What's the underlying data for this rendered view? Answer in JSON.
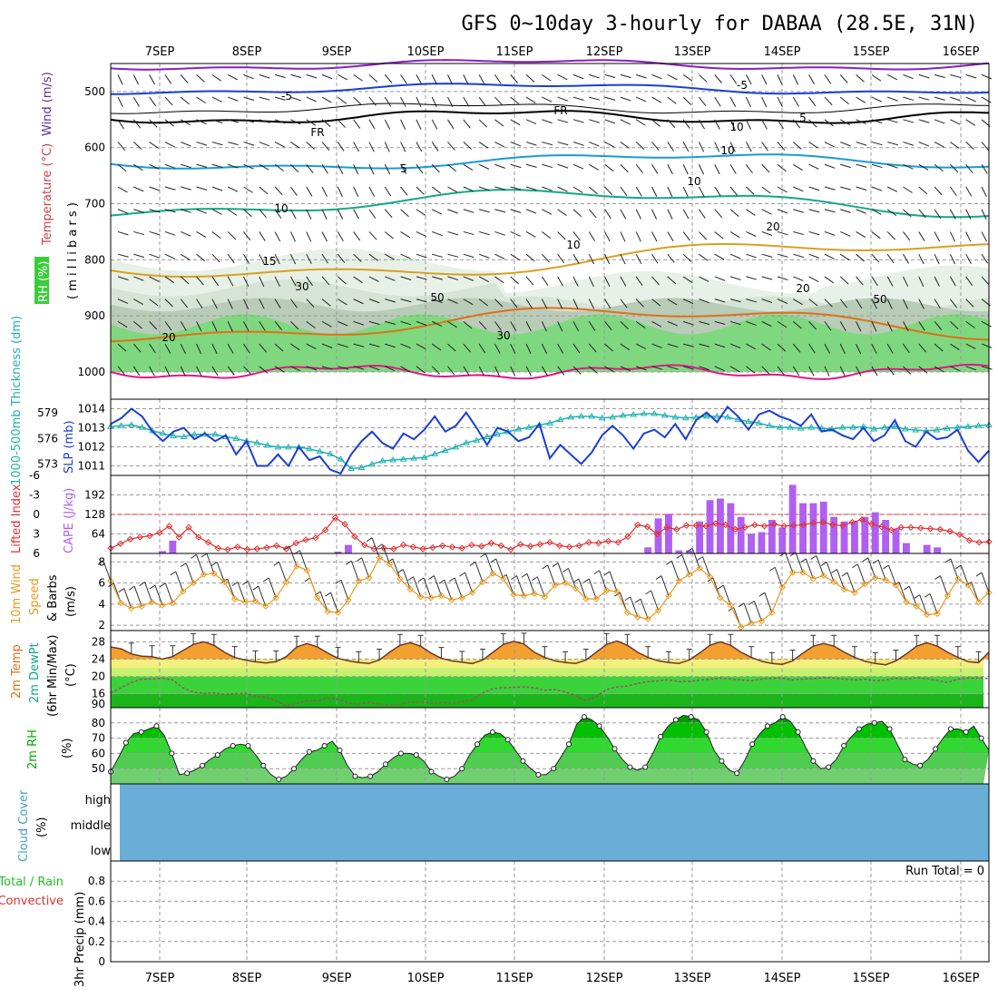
{
  "title": "GFS 0~10day 3-hourly for DABAA (28.5E, 31N)",
  "colors": {
    "purple": "#8a1fc0",
    "blue": "#1a3fd0",
    "black": "#000000",
    "lightblue": "#1a9ad6",
    "teal": "#12a888",
    "gold": "#d8a020",
    "orange": "#e07018",
    "magenta": "#e0188a",
    "cape": "#b060f0",
    "li": "#e03030",
    "wind10": "#e89a20",
    "thick": "#20b0b0",
    "slp": "#1a3fd0",
    "cloud": "#6aaed8",
    "rh_green": "#00cc00"
  },
  "date_labels": [
    "7SEP",
    "8SEP",
    "9SEP",
    "10SEP",
    "11SEP",
    "12SEP",
    "13SEP",
    "14SEP",
    "15SEP",
    "16SEP"
  ],
  "panels": {
    "upper": {
      "ylabel_temp": "Temperature (°C)",
      "ylabel_wind": "Wind (m/s)",
      "ylabel_rh": "RH (%)",
      "ylabel_p": "( m i l l i b a r s )",
      "ticks": [
        "500",
        "600",
        "700",
        "800",
        "900",
        "1000"
      ],
      "contour_labels": [
        "-5",
        "-5",
        "FR",
        "FR",
        "5",
        "5",
        "10",
        "10",
        "10",
        "15",
        "15",
        "20",
        "20",
        "20",
        "30",
        "30",
        "50",
        "50",
        "10",
        "10"
      ]
    },
    "slp": {
      "ylabel_left": "1000-500mb Thickness (dm)",
      "ylabel_right": "SLP (mb)",
      "thick_ticks": [
        "579",
        "576",
        "573"
      ],
      "slp_ticks": [
        "1014",
        "1013",
        "1012",
        "1011"
      ]
    },
    "cape": {
      "ylabel_left": "Lifted Index",
      "ylabel_right": "CAPE (J/kg)",
      "li_ticks": [
        "-6",
        "-3",
        "0",
        "3",
        "6"
      ],
      "cape_ticks": [
        "192",
        "128",
        "64"
      ]
    },
    "wind": {
      "ylabel1": "10m Wind",
      "ylabel2": "Speed",
      "ylabel3": "& Barbs",
      "ylabel_unit": "(m/s)",
      "ticks": [
        "8",
        "6",
        "4",
        "2"
      ]
    },
    "temp": {
      "ylabel1": "2m Temp",
      "ylabel2": "2m DewPt",
      "ylabel3": "(6hr Min/Max)",
      "ylabel_unit": "(°C)",
      "ticks": [
        "28",
        "24",
        "20",
        "16",
        "90"
      ]
    },
    "rh": {
      "ylabel": "2m RH",
      "ylabel_unit": "(%)",
      "ticks": [
        "80",
        "70",
        "60",
        "50"
      ]
    },
    "cloud": {
      "ylabel1": "Cloud Cover",
      "ylabel_unit": "(%)",
      "levels": [
        "high",
        "middle",
        "low"
      ]
    },
    "precip": {
      "ylabel_total": "Total / Rain",
      "ylabel_conv": "Convective",
      "ylabel_axis": "3hr Precip (mm)",
      "ticks": [
        "0.8",
        "0.6",
        "0.4",
        "0.2",
        "0"
      ],
      "run_total": "Run Total = 0"
    }
  },
  "chart_data": [
    {
      "type": "line",
      "name": "slp_thickness",
      "x_unit": "forecast hour",
      "series": [
        {
          "name": "SLP (mb)",
          "values": [
            1013.2,
            1013.5,
            1014,
            1013.6,
            1012.8,
            1012.3,
            1012.8,
            1013.0,
            1012.4,
            1012.7,
            1012.3,
            1012.6,
            1011.6,
            1012.3,
            1011.0,
            1011.0,
            1011.6,
            1011.0,
            1012.0,
            1011.3,
            1011.5,
            1010.8,
            1010.6,
            1011.6,
            1012.3,
            1012.8,
            1012.2,
            1011.9,
            1012.7,
            1012.4,
            1012.9,
            1013.6,
            1012.8,
            1013.1,
            1013.8,
            1013.0,
            1012.1,
            1013.0,
            1012.8,
            1012.3,
            1012.5,
            1013.2,
            1011.4,
            1012.1,
            1011.6,
            1011.1,
            1011.7,
            1012.6,
            1013.1,
            1012.6,
            1011.9,
            1012.7,
            1012.9,
            1012.5,
            1013.2,
            1012.4,
            1013.4,
            1013.8,
            1013.3,
            1014.1,
            1013.6,
            1012.9,
            1013.7,
            1013.9,
            1013.6,
            1013.4,
            1013.1,
            1013.7,
            1012.8,
            1012.9,
            1012.6,
            1012.4,
            1013.0,
            1012.3,
            1012.6,
            1013.4,
            1012.3,
            1012.0,
            1012.8,
            1012.4,
            1012.5,
            1012.9,
            1011.8,
            1011.2,
            1011.8
          ]
        },
        {
          "name": "1000-500mb Thickness (dm)",
          "values": [
            577.4,
            577.5,
            577.6,
            577.3,
            576.9,
            576.6,
            576.3,
            576.2,
            576.5,
            576.5,
            576.5,
            576.2,
            576.0,
            575.7,
            575.5,
            575.2,
            575.0,
            575.0,
            575.0,
            574.8,
            574.5,
            574.2,
            573.6,
            572.5,
            572.6,
            573.0,
            573.4,
            573.5,
            573.6,
            573.7,
            573.8,
            574.2,
            574.6,
            575.0,
            575.5,
            575.8,
            576.2,
            576.5,
            576.8,
            577.1,
            577.3,
            577.6,
            577.8,
            578.2,
            578.5,
            578.6,
            578.6,
            578.4,
            578.5,
            578.7,
            578.8,
            578.9,
            578.9,
            578.7,
            578.5,
            578.4,
            578.5,
            578.6,
            578.6,
            578.5,
            578.2,
            578.0,
            577.8,
            577.5,
            577.3,
            577.3,
            577.2,
            577.3,
            577.2,
            577.1,
            577.3,
            577.3,
            577.4,
            577.1,
            577.3,
            577.4,
            577.1,
            577.0,
            576.9,
            577.0,
            577.2,
            577.3,
            577.4,
            577.5,
            577.6
          ]
        }
      ],
      "ylim_slp": [
        1010.5,
        1014.5
      ],
      "ylim_thick": [
        571.7,
        580.6
      ]
    },
    {
      "type": "bar",
      "name": "cape_li",
      "series": [
        {
          "name": "CAPE (J/kg)",
          "values": [
            0,
            0,
            0,
            0,
            0,
            8,
            42,
            0,
            0,
            0,
            0,
            0,
            0,
            0,
            0,
            0,
            0,
            0,
            0,
            0,
            0,
            0,
            6,
            28,
            0,
            0,
            0,
            0,
            0,
            0,
            0,
            0,
            0,
            0,
            0,
            0,
            0,
            0,
            0,
            0,
            0,
            0,
            0,
            0,
            0,
            0,
            0,
            0,
            0,
            0,
            0,
            0,
            20,
            115,
            130,
            10,
            10,
            105,
            175,
            180,
            165,
            120,
            65,
            70,
            110,
            85,
            225,
            165,
            165,
            170,
            120,
            105,
            105,
            120,
            135,
            110,
            80,
            34,
            0,
            28,
            20,
            0,
            0,
            0,
            0,
            0
          ]
        },
        {
          "name": "Lifted Index",
          "values": [
            5.2,
            4.5,
            3.8,
            3.5,
            3.3,
            2.8,
            1.8,
            3.5,
            2.0,
            3.5,
            4.3,
            5.2,
            5.4,
            5.0,
            5.4,
            5.3,
            5.1,
            4.8,
            5.3,
            4.4,
            3.9,
            3.6,
            2.4,
            0.5,
            1.5,
            3.4,
            4.7,
            5.3,
            5.2,
            5.3,
            4.7,
            5.0,
            5.3,
            5.1,
            4.8,
            5.0,
            5.2,
            4.7,
            4.9,
            4.4,
            4.8,
            5.4,
            4.6,
            4.9,
            4.6,
            4.3,
            4.8,
            5.0,
            4.8,
            4.3,
            4.4,
            4.1,
            4.3,
            3.4,
            1.6,
            1.9,
            3.0,
            2.0,
            2.3,
            1.7,
            1.7,
            1.8,
            1.4,
            1.6,
            2.3,
            2.0,
            1.6,
            1.8,
            1.5,
            1.8,
            1.7,
            1.6,
            1.3,
            1.2,
            1.6,
            1.7,
            1.2,
            0.8,
            1.5,
            1.9,
            2.4,
            2.0,
            2.0,
            2.1,
            2.2,
            2.3,
            2.6,
            3.1,
            4.0,
            4.3,
            4.2
          ]
        }
      ],
      "ylim_cape": [
        0,
        256
      ],
      "ylim_li": [
        6,
        -6
      ]
    },
    {
      "type": "line",
      "name": "wind10m",
      "series": [
        {
          "name": "10m Wind Speed (m/s)",
          "values": [
            6.2,
            4.1,
            3.6,
            3.8,
            4.2,
            3.9,
            4.1,
            5.2,
            6.0,
            6.8,
            6.9,
            6.1,
            4.5,
            4.2,
            4.3,
            3.8,
            4.6,
            6.1,
            7.6,
            7.2,
            4.6,
            3.3,
            3.2,
            4.4,
            6.2,
            6.5,
            8.4,
            7.8,
            6.4,
            5.4,
            4.7,
            4.6,
            4.8,
            4.4,
            4.6,
            5.1,
            6.1,
            6.9,
            6.4,
            4.9,
            4.8,
            5.0,
            4.7,
            5.8,
            6.0,
            5.5,
            4.5,
            4.5,
            5.3,
            5.2,
            3.2,
            2.8,
            2.6,
            3.4,
            4.8,
            6.2,
            6.8,
            7.4,
            6.6,
            4.6,
            3.9,
            1.8,
            2.2,
            2.4,
            3.2,
            5.6,
            7.0,
            7.0,
            6.4,
            6.7,
            6.1,
            5.4,
            5.1,
            5.9,
            6.5,
            6.3,
            5.8,
            4.2,
            3.8,
            3.0,
            3.1,
            4.8,
            6.4,
            5.8,
            4.2,
            5.1
          ]
        }
      ],
      "ylim": [
        1.5,
        8.8
      ]
    },
    {
      "type": "area",
      "name": "temp2m",
      "series": [
        {
          "name": "2m Temp",
          "values": [
            26.8,
            26.4,
            25.2,
            24.7,
            24.6,
            24.0,
            24.6,
            26.0,
            27.4,
            28.0,
            27.2,
            25.6,
            24.4,
            23.8,
            23.4,
            23.1,
            23.4,
            24.6,
            26.8,
            27.6,
            26.8,
            25.4,
            24.2,
            23.6,
            23.2,
            23.0,
            23.8,
            25.6,
            27.2,
            27.8,
            27.0,
            25.4,
            24.2,
            23.6,
            23.3,
            23.0,
            23.8,
            25.6,
            27.4,
            28.1,
            27.5,
            25.6,
            24.4,
            23.6,
            23.2,
            23.0,
            23.8,
            25.6,
            27.4,
            28.2,
            27.2,
            25.6,
            24.4,
            23.6,
            23.2,
            23.0,
            23.8,
            25.4,
            27.2,
            28.0,
            27.2,
            25.6,
            24.4,
            23.5,
            23.0,
            22.8,
            23.6,
            25.4,
            27.0,
            27.6,
            27.0,
            25.6,
            24.4,
            23.5,
            23.0,
            22.7,
            23.6,
            25.2,
            27.0,
            27.8,
            27.0,
            25.6,
            24.4,
            23.4,
            23.2,
            25.6
          ]
        },
        {
          "name": "2m DewPt",
          "values": [
            16.2,
            17.4,
            18.6,
            19.4,
            19.4,
            19.6,
            19.2,
            17.4,
            16.4,
            16.1,
            16.2,
            15.9,
            16.0,
            16.1,
            15.5,
            15.2,
            14.4,
            13.2,
            13.8,
            14.4,
            14.4,
            15.0,
            14.8,
            13.8,
            13.6,
            14.0,
            13.6,
            13.4,
            13.6,
            14.1,
            14.2,
            13.8,
            14.0,
            13.8,
            14.2,
            14.6,
            16.2,
            17.2,
            17.4,
            17.5,
            17.6,
            17.4,
            16.8,
            17.0,
            16.4,
            15.6,
            14.4,
            15.4,
            17.0,
            17.6,
            17.8,
            18.4,
            18.8,
            19.0,
            19.2,
            18.8,
            18.9,
            19.1,
            19.4,
            19.6,
            19.4,
            19.2,
            19.0,
            19.4,
            19.6,
            19.6,
            19.2,
            19.4,
            19.5,
            19.7,
            19.6,
            19.4,
            19.2,
            19.4,
            19.0,
            19.2,
            19.6,
            19.4,
            19.7,
            19.5,
            19.1,
            18.6,
            19.4,
            19.6,
            19.7,
            19.5
          ]
        }
      ],
      "ylim": [
        12.8,
        30.6
      ]
    },
    {
      "type": "area",
      "name": "rh2m",
      "series": [
        {
          "name": "2m RH",
          "values": [
            48,
            57,
            67,
            73,
            74,
            76,
            78,
            72,
            60,
            46,
            47,
            49,
            52,
            56,
            59,
            63,
            65,
            66,
            65,
            59,
            52,
            46,
            43,
            45,
            50,
            56,
            61,
            62,
            65,
            68,
            62,
            52,
            45,
            44,
            45,
            48,
            53,
            57,
            60,
            60,
            59,
            55,
            48,
            45,
            43,
            45,
            50,
            59,
            66,
            72,
            74,
            73,
            69,
            62,
            55,
            50,
            46,
            46,
            50,
            58,
            66,
            79,
            84,
            82,
            78,
            71,
            63,
            56,
            51,
            49,
            51,
            60,
            71,
            78,
            82,
            85,
            84,
            82,
            74,
            62,
            55,
            49,
            47,
            55,
            66,
            73,
            78,
            80,
            84,
            81,
            74,
            64,
            55,
            50,
            51,
            56,
            65,
            71,
            76,
            79,
            80,
            81,
            76,
            66,
            56,
            53,
            52,
            56,
            63,
            70,
            76,
            76,
            74,
            78,
            70,
            62
          ]
        }
      ],
      "ylim": [
        40,
        90
      ]
    },
    {
      "type": "area",
      "name": "cloud_cover",
      "series": [
        {
          "name": "Cloud Cover (%)",
          "values": [
            100
          ]
        }
      ]
    },
    {
      "type": "bar",
      "name": "precip3hr",
      "series": [
        {
          "name": "3hr Precip (mm)",
          "values": []
        }
      ],
      "ylim": [
        0,
        1
      ]
    }
  ]
}
